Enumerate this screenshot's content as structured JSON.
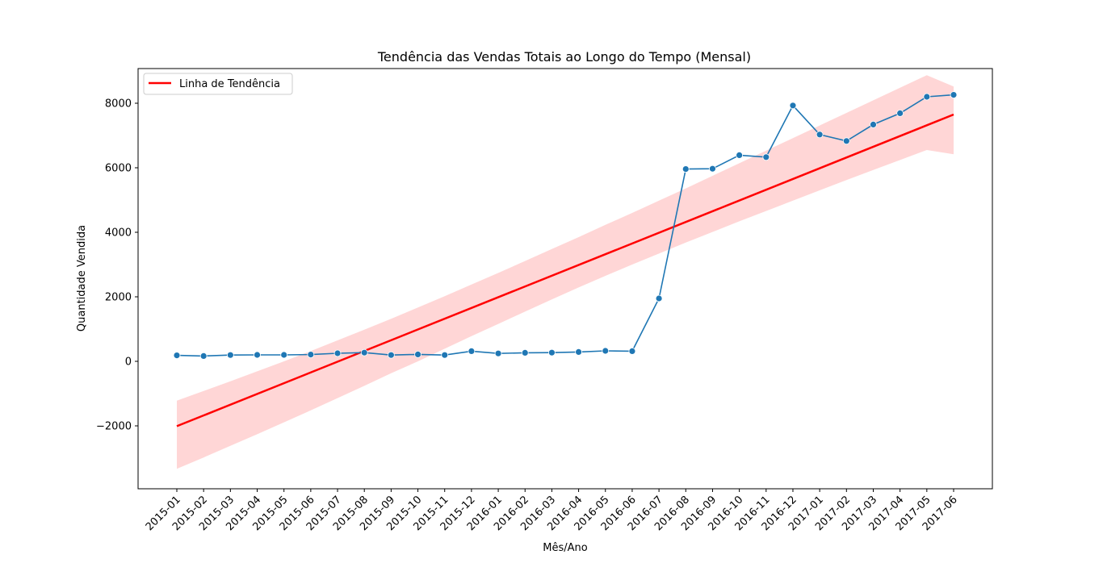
{
  "chart_data": {
    "type": "line",
    "title": "Tendência das Vendas Totais ao Longo do Tempo (Mensal)",
    "xlabel": "Mês/Ano",
    "ylabel": "Quantidade Vendida",
    "ylim": [
      -4000,
      9000
    ],
    "yticks": [
      -2000,
      0,
      2000,
      4000,
      6000,
      8000
    ],
    "yticks_labels": [
      "−2000",
      "0",
      "2000",
      "4000",
      "6000",
      "8000"
    ],
    "categories": [
      "2015-01",
      "2015-02",
      "2015-03",
      "2015-04",
      "2015-05",
      "2015-06",
      "2015-07",
      "2015-08",
      "2015-09",
      "2015-10",
      "2015-11",
      "2015-12",
      "2016-01",
      "2016-02",
      "2016-03",
      "2016-04",
      "2016-05",
      "2016-06",
      "2016-07",
      "2016-08",
      "2016-09",
      "2016-10",
      "2016-11",
      "2016-12",
      "2017-01",
      "2017-02",
      "2017-03",
      "2017-04",
      "2017-05",
      "2017-06"
    ],
    "series": [
      {
        "values": [
          185,
          165,
          195,
          200,
          200,
          210,
          250,
          270,
          195,
          215,
          195,
          315,
          245,
          265,
          270,
          290,
          325,
          315,
          1950,
          5960,
          5970,
          6390,
          6330,
          7930,
          7030,
          6830,
          7340,
          7690,
          8200,
          8260
        ],
        "color": "#1f77b4",
        "marker": "circle"
      }
    ],
    "trend": {
      "name": "Linha de Tendência",
      "color": "#ff0000",
      "band_color": "#ffcccc",
      "values": [
        -2010,
        7650
      ],
      "band_lower": [
        -3330,
        -2980,
        -2620,
        -2260,
        -1890,
        -1520,
        -1140,
        -760,
        -370,
        0,
        390,
        780,
        1160,
        1540,
        1920,
        2290,
        2650,
        3000,
        3340,
        3680,
        4010,
        4340,
        4660,
        4980,
        5300,
        5620,
        5930,
        6240,
        6550,
        6420
      ],
      "band_upper": [
        -1220,
        -920,
        -620,
        -310,
        0,
        320,
        650,
        980,
        1320,
        1670,
        2020,
        2380,
        2740,
        3110,
        3480,
        3850,
        4230,
        4600,
        4980,
        5360,
        5750,
        6140,
        6530,
        6920,
        7310,
        7700,
        8090,
        8480,
        8870,
        8520
      ]
    },
    "legend_placement": "top-left",
    "grid": false
  }
}
